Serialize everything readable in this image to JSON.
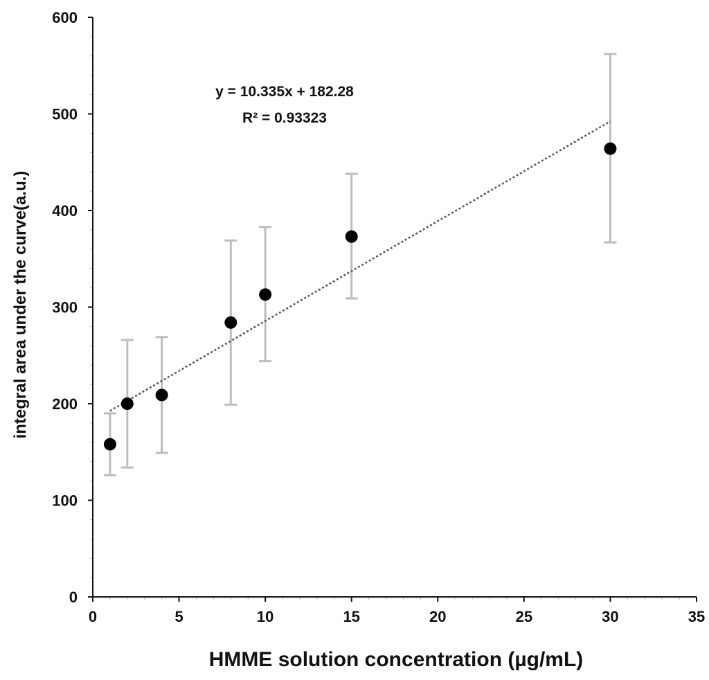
{
  "chart_data": {
    "type": "scatter",
    "title": "",
    "xlabel": "HMME solution concentration (µg/mL)",
    "ylabel": "integral area under the curve(a.u.)",
    "xlim": [
      0,
      35
    ],
    "ylim": [
      0,
      600
    ],
    "x_ticks": [
      "0",
      "5",
      "10",
      "15",
      "20",
      "25",
      "30",
      "35"
    ],
    "y_ticks": [
      "0",
      "100",
      "200",
      "300",
      "400",
      "500",
      "600"
    ],
    "grid": false,
    "legend": "none",
    "series": [
      {
        "x": [
          1,
          2,
          4,
          8,
          10,
          15,
          30
        ],
        "y": [
          158,
          200,
          209,
          284,
          313,
          373,
          464
        ],
        "error_low": [
          126,
          134,
          149,
          199,
          244,
          309,
          367
        ],
        "error_high": [
          190,
          266,
          269,
          369,
          383,
          438,
          562
        ],
        "marker_color": "#000000",
        "errorbar_color": "#bdbdbd"
      }
    ],
    "trendline": {
      "slope": 10.335,
      "intercept": 182.28,
      "x_range": [
        1,
        30
      ],
      "style": "dotted",
      "color": "#555555"
    },
    "annotations": {
      "equation": "y = 10.335x + 182.28",
      "r_squared": "R² = 0.93323"
    }
  }
}
